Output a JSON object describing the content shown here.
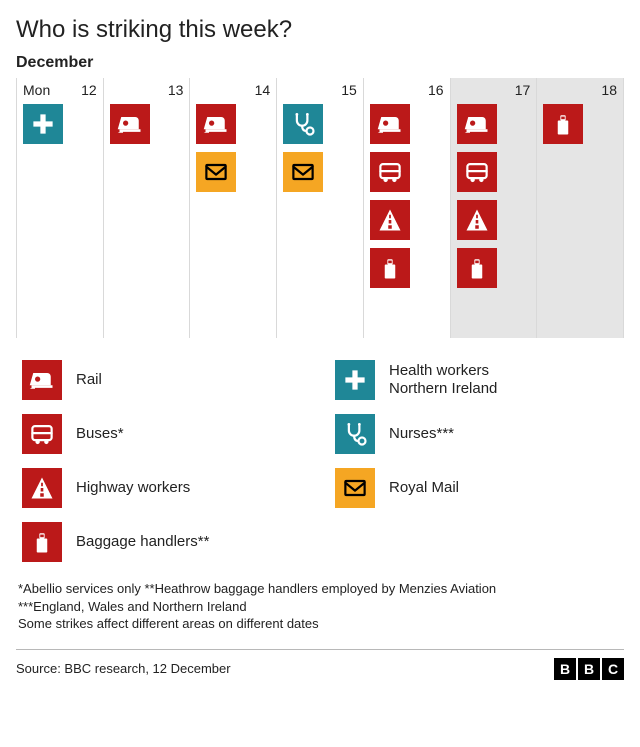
{
  "title": "Who is striking this week?",
  "month": "December",
  "colors": {
    "red": "#bb1919",
    "teal": "#1f8797",
    "amber": "#f5a623",
    "weekend_bg": "#e5e5e5",
    "grid": "#d9d9d9",
    "text": "#222222",
    "white": "#ffffff",
    "black": "#000000"
  },
  "icon_types": {
    "rail": {
      "bg": "#bb1919",
      "fg": "#ffffff"
    },
    "bus": {
      "bg": "#bb1919",
      "fg": "#ffffff"
    },
    "highway": {
      "bg": "#bb1919",
      "fg": "#ffffff"
    },
    "baggage": {
      "bg": "#bb1919",
      "fg": "#ffffff"
    },
    "health": {
      "bg": "#1f8797",
      "fg": "#ffffff"
    },
    "nurses": {
      "bg": "#1f8797",
      "fg": "#ffffff"
    },
    "mail": {
      "bg": "#f5a623",
      "fg": "#000000"
    }
  },
  "days": [
    {
      "day_label": "Mon",
      "date": "12",
      "weekend": false,
      "icons": [
        "health"
      ]
    },
    {
      "day_label": "",
      "date": "13",
      "weekend": false,
      "icons": [
        "rail"
      ]
    },
    {
      "day_label": "",
      "date": "14",
      "weekend": false,
      "icons": [
        "rail",
        "mail"
      ]
    },
    {
      "day_label": "",
      "date": "15",
      "weekend": false,
      "icons": [
        "nurses",
        "mail"
      ]
    },
    {
      "day_label": "",
      "date": "16",
      "weekend": false,
      "icons": [
        "rail",
        "bus",
        "highway",
        "baggage"
      ]
    },
    {
      "day_label": "",
      "date": "17",
      "weekend": true,
      "icons": [
        "rail",
        "bus",
        "highway",
        "baggage"
      ]
    },
    {
      "day_label": "",
      "date": "18",
      "weekend": true,
      "icons": [
        "baggage"
      ]
    }
  ],
  "legend_left": [
    {
      "icon": "rail",
      "label": "Rail"
    },
    {
      "icon": "bus",
      "label": "Buses*"
    },
    {
      "icon": "highway",
      "label": "Highway workers"
    },
    {
      "icon": "baggage",
      "label": "Baggage handlers**"
    }
  ],
  "legend_right": [
    {
      "icon": "health",
      "label": "Health workers\nNorthern Ireland"
    },
    {
      "icon": "nurses",
      "label": "Nurses***"
    },
    {
      "icon": "mail",
      "label": "Royal Mail"
    }
  ],
  "footnotes": [
    "*Abellio services only **Heathrow baggage handlers employed by Menzies Aviation",
    "***England, Wales and Northern Ireland",
    "Some strikes affect different areas on different dates"
  ],
  "source": "Source: BBC research, 12 December",
  "bbc_logo": [
    "B",
    "B",
    "C"
  ]
}
